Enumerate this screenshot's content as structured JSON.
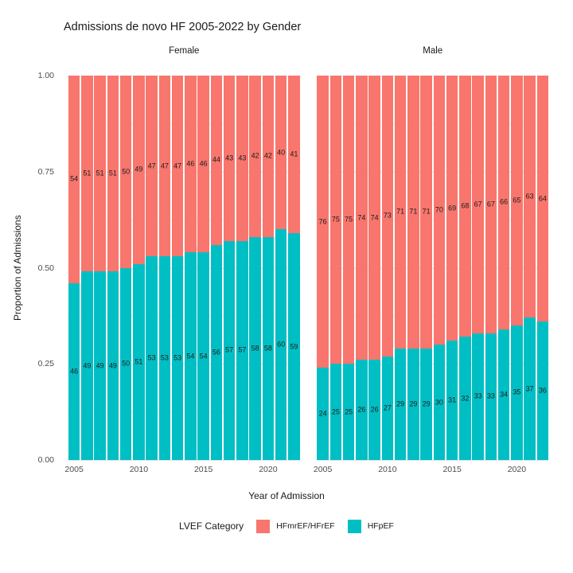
{
  "chart_data": {
    "type": "bar",
    "stacked": true,
    "title": "Admissions de novo HF 2005-2022 by Gender",
    "xlabel": "Year of Admission",
    "ylabel": "Proportion of Admissions",
    "ylim": [
      0,
      1
    ],
    "grid": true,
    "yticks": [
      "1.00",
      "0.75",
      "0.50",
      "0.25",
      "0.00"
    ],
    "xticks": [
      2005,
      2010,
      2015,
      2020
    ],
    "years": [
      2005,
      2006,
      2007,
      2008,
      2009,
      2010,
      2011,
      2012,
      2013,
      2014,
      2015,
      2016,
      2017,
      2018,
      2019,
      2020,
      2021,
      2022
    ],
    "legend": {
      "title": "LVEF Category",
      "position": "bottom",
      "entries": [
        {
          "label": "HFmrEF/HFrEF",
          "color": "#F8766D"
        },
        {
          "label": "HFpEF",
          "color": "#00BFC4"
        }
      ]
    },
    "facets": [
      {
        "label": "Female",
        "series": [
          {
            "name": "HFmrEF/HFrEF",
            "values": [
              54,
              51,
              51,
              51,
              50,
              49,
              47,
              47,
              47,
              46,
              46,
              44,
              43,
              43,
              42,
              42,
              40,
              41
            ]
          },
          {
            "name": "HFpEF",
            "values": [
              46,
              49,
              49,
              49,
              50,
              51,
              53,
              53,
              53,
              54,
              54,
              56,
              57,
              57,
              58,
              58,
              60,
              59
            ]
          }
        ]
      },
      {
        "label": "Male",
        "series": [
          {
            "name": "HFmrEF/HFrEF",
            "values": [
              76,
              75,
              75,
              74,
              74,
              73,
              71,
              71,
              71,
              70,
              69,
              68,
              67,
              67,
              66,
              65,
              63,
              64
            ]
          },
          {
            "name": "HFpEF",
            "values": [
              24,
              25,
              25,
              26,
              26,
              27,
              29,
              29,
              29,
              30,
              31,
              32,
              33,
              33,
              34,
              35,
              37,
              36
            ]
          }
        ]
      }
    ]
  }
}
